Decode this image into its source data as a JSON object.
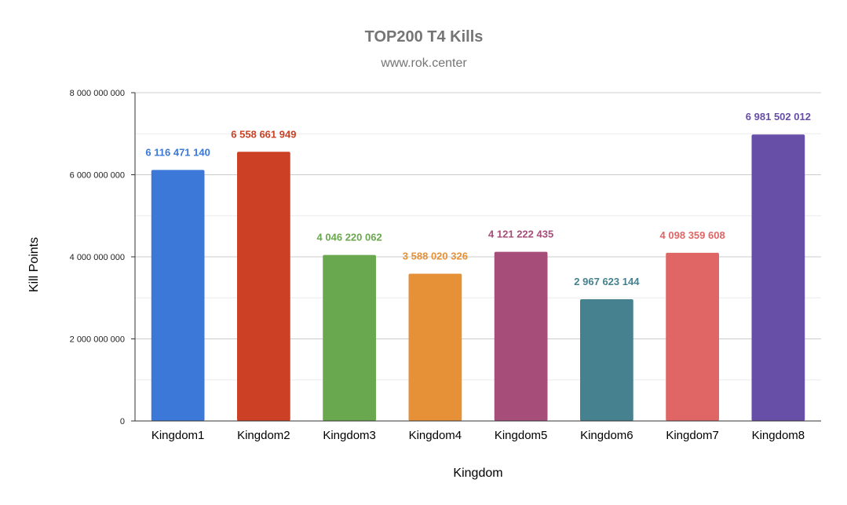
{
  "chart_data": {
    "type": "bar",
    "title": "TOP200 T4 Kills",
    "subtitle": "www.rok.center",
    "xlabel": "Kingdom",
    "ylabel": "Kill Points",
    "ylim": [
      0,
      8000000000
    ],
    "yticks": [
      0,
      2000000000,
      4000000000,
      6000000000,
      8000000000
    ],
    "ytick_labels": [
      "0",
      "2 000 000 000",
      "4 000 000 000",
      "6 000 000 000",
      "8 000 000 000"
    ],
    "grid": true,
    "categories": [
      "Kingdom1",
      "Kingdom2",
      "Kingdom3",
      "Kingdom4",
      "Kingdom5",
      "Kingdom6",
      "Kingdom7",
      "Kingdom8"
    ],
    "values": [
      6116471140,
      6558661949,
      4046220062,
      3588020326,
      4121222435,
      2967623144,
      4098359608,
      6981502012
    ],
    "value_labels": [
      "6 116 471 140",
      "6 558 661 949",
      "4 046 220 062",
      "3 588 020 326",
      "4 121 222 435",
      "2 967 623 144",
      "4 098 359 608",
      "6 981 502 012"
    ],
    "colors": [
      "#3c78d8",
      "#cc4125",
      "#6aa84f",
      "#e69138",
      "#a64d79",
      "#45818e",
      "#e06666",
      "#674ea7"
    ]
  }
}
